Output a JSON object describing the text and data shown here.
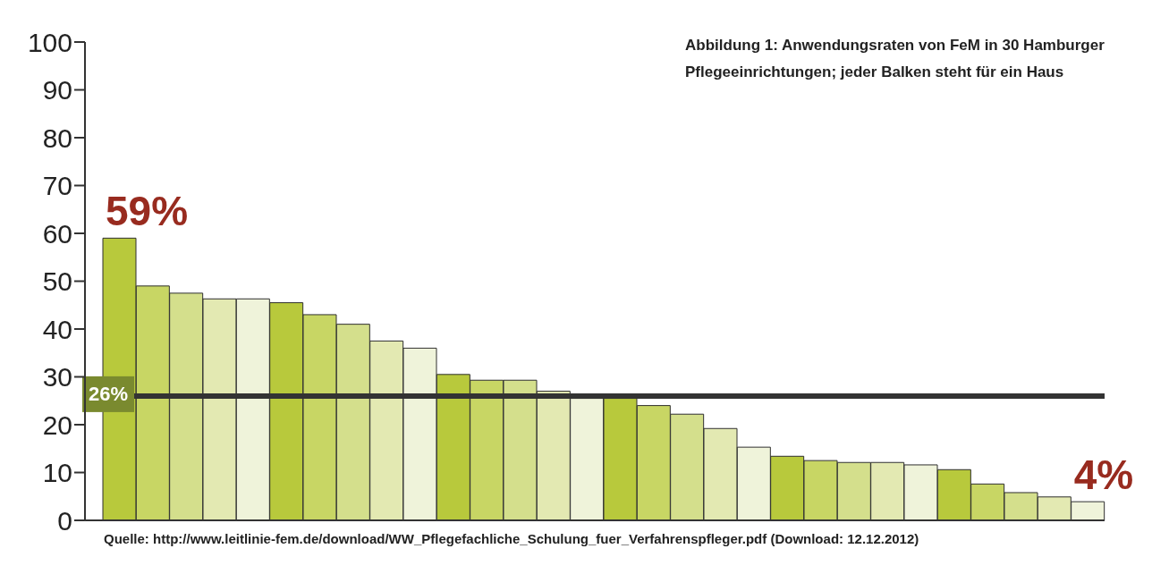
{
  "chart_data": {
    "type": "bar",
    "title": "Abbildung 1: Anwendungsraten von FeM in 30 Hamburger Pflegeeinrichtungen; jeder Balken steht für ein Haus",
    "categories": [
      null,
      null,
      null,
      null,
      null,
      null,
      null,
      null,
      null,
      null,
      null,
      null,
      null,
      null,
      null,
      null,
      null,
      null,
      null,
      null,
      null,
      null,
      null,
      null,
      null,
      null,
      null,
      null,
      null,
      null
    ],
    "values": [
      59,
      49,
      47.5,
      46.3,
      46.3,
      45.5,
      43,
      41,
      37.5,
      36,
      30.5,
      29.3,
      29.3,
      27,
      25.5,
      25.5,
      24,
      22.2,
      19.2,
      15.3,
      13.4,
      12.5,
      12.1,
      12.1,
      11.6,
      10.6,
      7.6,
      5.8,
      4.9,
      3.9
    ],
    "value_labels": [
      "59%",
      null,
      null,
      null,
      null,
      null,
      null,
      null,
      null,
      null,
      null,
      null,
      null,
      null,
      null,
      null,
      null,
      null,
      null,
      null,
      null,
      null,
      null,
      null,
      null,
      null,
      null,
      null,
      null,
      "4%"
    ],
    "colors": [
      "#b8c93c",
      "#c8d664",
      "#d4df8c",
      "#e3e9b2",
      "#eff3da",
      "#b8c93c",
      "#c8d664",
      "#d4df8c",
      "#e3e9b2",
      "#eff3da",
      "#b8c93c",
      "#c8d664",
      "#d4df8c",
      "#e3e9b2",
      "#eff3da",
      "#b8c93c",
      "#c8d664",
      "#d4df8c",
      "#e3e9b2",
      "#eff3da",
      "#b8c93c",
      "#c8d664",
      "#d4df8c",
      "#e3e9b2",
      "#eff3da",
      "#b8c93c",
      "#c8d664",
      "#d4df8c",
      "#e3e9b2",
      "#eff3da"
    ],
    "ylim": [
      0,
      100
    ],
    "yticks": [
      0,
      10,
      20,
      30,
      40,
      50,
      60,
      70,
      80,
      90,
      100
    ],
    "ref_lines": [
      {
        "axis": "y",
        "value": 26,
        "label": "26%",
        "color": "#333333"
      }
    ],
    "annotations": [
      "Quelle: http://www.leitlinie-fem.de/download/WW_Pflegefachliche_Schulung_fuer_Verfahrenspfleger.pdf (Download: 12.12.2012)"
    ],
    "grid": false,
    "legend": false
  }
}
